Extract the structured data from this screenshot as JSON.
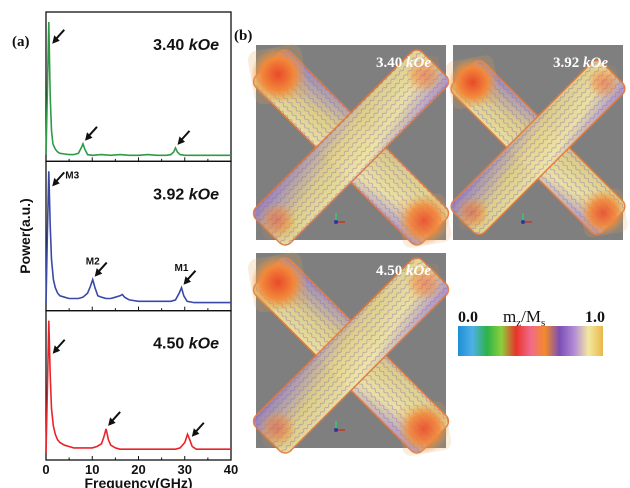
{
  "panel_a_label": "(a)",
  "panel_b_label": "(b)",
  "chart_data": {
    "type": "line",
    "xlabel": "Frequency(GHz)",
    "ylabel": "Power(a.u.)",
    "xlim": [
      0,
      40
    ],
    "xticks": [
      0,
      10,
      20,
      30,
      40
    ],
    "grid": false,
    "series": [
      {
        "name": "3.40 kOe",
        "field": "3.40",
        "unit": "kOe",
        "color": "#2e9b46",
        "x": [
          0,
          0.3,
          0.6,
          0.9,
          1.2,
          1.5,
          2.0,
          2.5,
          3,
          4,
          5,
          6,
          7,
          7.6,
          8.0,
          8.4,
          9,
          10,
          12,
          14,
          16,
          18,
          20,
          22,
          24,
          26,
          27,
          27.6,
          28.0,
          28.4,
          29,
          30,
          32,
          34,
          36,
          38,
          40
        ],
        "values": [
          0.02,
          0.5,
          1.0,
          0.45,
          0.2,
          0.1,
          0.06,
          0.04,
          0.03,
          0.025,
          0.02,
          0.02,
          0.03,
          0.07,
          0.1,
          0.06,
          0.02,
          0.015,
          0.02,
          0.015,
          0.02,
          0.015,
          0.015,
          0.02,
          0.015,
          0.015,
          0.02,
          0.04,
          0.07,
          0.04,
          0.02,
          0.015,
          0.015,
          0.015,
          0.015,
          0.015,
          0.015
        ],
        "arrows_at": [
          0.7,
          8.0,
          28.0
        ],
        "mode_labels": []
      },
      {
        "name": "3.92 kOe",
        "field": "3.92",
        "unit": "kOe",
        "color": "#3a49a8",
        "x": [
          0,
          0.3,
          0.6,
          0.9,
          1.2,
          1.6,
          2.0,
          2.5,
          3,
          4,
          5,
          6,
          7,
          8,
          9,
          9.6,
          10.1,
          10.6,
          11.2,
          12,
          13,
          14,
          15,
          16,
          16.5,
          17,
          18,
          20,
          22,
          24,
          26,
          27,
          28,
          28.8,
          29.3,
          29.8,
          30.5,
          32,
          34,
          36,
          38,
          40
        ],
        "values": [
          0.02,
          0.55,
          1.0,
          0.6,
          0.35,
          0.2,
          0.14,
          0.1,
          0.08,
          0.07,
          0.06,
          0.06,
          0.06,
          0.07,
          0.1,
          0.15,
          0.2,
          0.14,
          0.08,
          0.07,
          0.06,
          0.06,
          0.07,
          0.08,
          0.09,
          0.07,
          0.05,
          0.04,
          0.04,
          0.04,
          0.04,
          0.04,
          0.05,
          0.1,
          0.14,
          0.08,
          0.04,
          0.03,
          0.03,
          0.03,
          0.03,
          0.03
        ],
        "arrows_at": [
          0.7,
          10.1,
          29.3
        ],
        "mode_labels": [
          {
            "text": "M3",
            "x": 0.7
          },
          {
            "text": "M2",
            "x": 10.1
          },
          {
            "text": "M1",
            "x": 29.3
          }
        ]
      },
      {
        "name": "4.50 kOe",
        "field": "4.50",
        "unit": "kOe",
        "color": "#e8242a",
        "x": [
          0,
          0.3,
          0.6,
          0.9,
          1.2,
          1.6,
          2.0,
          2.5,
          3,
          4,
          5,
          6,
          7,
          8,
          9,
          10,
          11,
          12,
          12.5,
          13.0,
          13.5,
          14,
          15,
          16,
          18,
          20,
          22,
          24,
          26,
          28,
          29,
          30,
          30.6,
          31.1,
          31.6,
          32.5,
          34,
          36,
          38,
          40
        ],
        "values": [
          0.02,
          0.5,
          1.0,
          0.6,
          0.35,
          0.22,
          0.16,
          0.12,
          0.1,
          0.08,
          0.07,
          0.06,
          0.06,
          0.06,
          0.06,
          0.06,
          0.07,
          0.09,
          0.14,
          0.2,
          0.12,
          0.08,
          0.06,
          0.05,
          0.05,
          0.05,
          0.05,
          0.05,
          0.05,
          0.05,
          0.06,
          0.1,
          0.16,
          0.12,
          0.07,
          0.05,
          0.05,
          0.05,
          0.05,
          0.05
        ],
        "arrows_at": [
          0.8,
          13.0,
          31.1
        ],
        "mode_labels": []
      }
    ]
  },
  "images_b": [
    {
      "field": "3.40",
      "unit": "kOe"
    },
    {
      "field": "3.92",
      "unit": "kOe"
    },
    {
      "field": "4.50",
      "unit": "kOe"
    }
  ],
  "colorbar": {
    "min_label": "0.0",
    "max_label": "1.0",
    "title_main": "m",
    "title_sub1": "z",
    "title_sep": "/M",
    "title_sub2": "s",
    "colors": [
      "#1e8fd6",
      "#4fb0e6",
      "#2db24a",
      "#8ccf3a",
      "#e8342a",
      "#f06a8a",
      "#f38a2b",
      "#7a4fb5",
      "#b28ad6",
      "#f2e8a0",
      "#e8b84a"
    ]
  }
}
